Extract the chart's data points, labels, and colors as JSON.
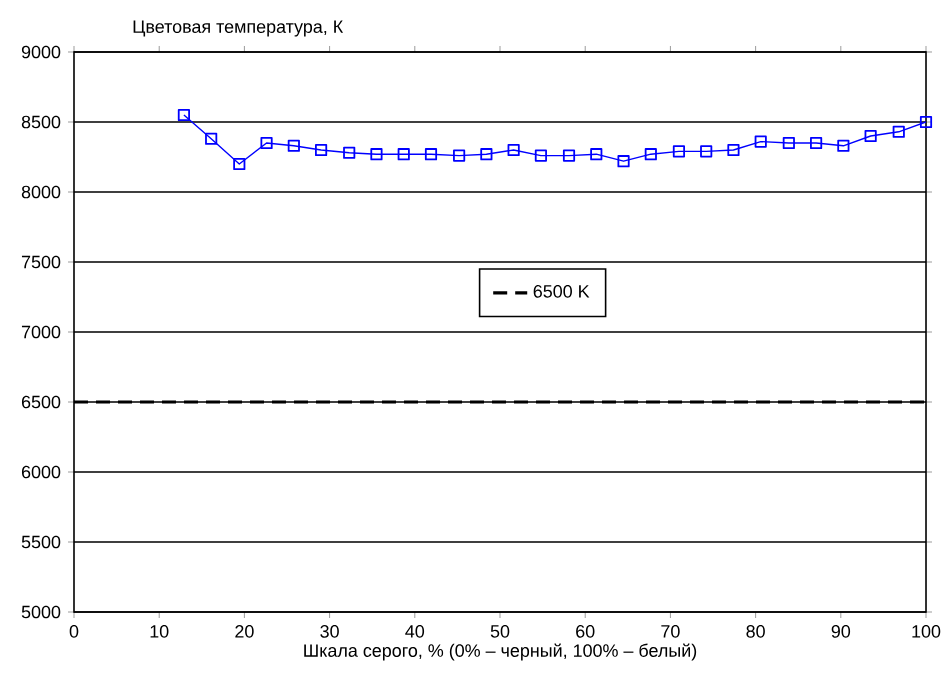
{
  "chart_data": {
    "type": "line",
    "ylabel": "Цветовая температура, К",
    "xlabel": "Шкала серого, % (0% – черный, 100% – белый)",
    "x": [
      12.9,
      16.1,
      19.4,
      22.6,
      25.8,
      29.0,
      32.3,
      35.5,
      38.7,
      41.9,
      45.2,
      48.4,
      51.6,
      54.8,
      58.1,
      61.3,
      64.5,
      67.7,
      71.0,
      74.2,
      77.4,
      80.6,
      83.9,
      87.1,
      90.3,
      93.5,
      96.8,
      100
    ],
    "series": [
      {
        "color": "#0000ff",
        "values": [
          8550,
          8380,
          8200,
          8350,
          8330,
          8300,
          8280,
          8270,
          8270,
          8270,
          8260,
          8270,
          8300,
          8260,
          8260,
          8270,
          8220,
          8270,
          8290,
          8290,
          8300,
          8360,
          8350,
          8350,
          8330,
          8400,
          8430,
          8500
        ]
      }
    ],
    "ref_lines": [
      {
        "axis": "y",
        "value": 6500,
        "label": "6500 K",
        "color": "#000000",
        "line_style": "dashed"
      }
    ],
    "xlim": [
      0,
      100
    ],
    "ylim": [
      5000,
      9000
    ],
    "xticks": [
      0,
      10,
      20,
      30,
      40,
      50,
      60,
      70,
      80,
      90,
      100
    ],
    "yticks": [
      5000,
      5500,
      6000,
      6500,
      7000,
      7500,
      8000,
      8500,
      9000
    ],
    "grid": "y",
    "legend": "center",
    "marker": "square",
    "line_style": "solid"
  }
}
